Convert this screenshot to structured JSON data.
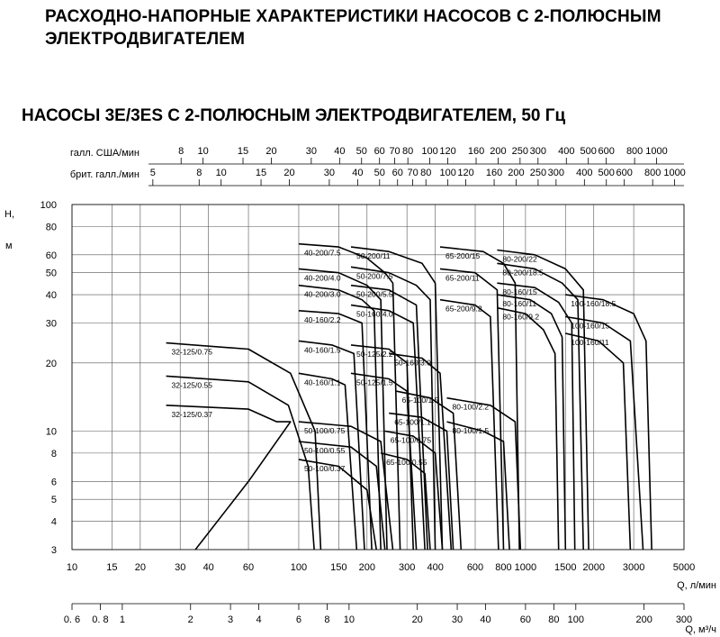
{
  "page": {
    "title": "РАСХОДНО-НАПОРНЫЕ ХАРАКТЕРИСТИКИ НАСОСОВ С 2-ПОЛЮСНЫМ ЭЛЕКТРОДВИГАТЕЛЕМ",
    "subtitle": "НАСОСЫ 3E/3ES С 2-ПОЛЮСНЫМ ЭЛЕКТРОДВИГАТЕЛЕМ, 50 Гц"
  },
  "chart_data": {
    "type": "line",
    "x_scale": "log",
    "y_scale": "log",
    "grid": true,
    "ylabel": "H,\nм",
    "xlabel": "Q, л/мин",
    "xlim": [
      10,
      5000
    ],
    "ylim": [
      3,
      100
    ],
    "x_ticks": [
      10,
      15,
      20,
      30,
      40,
      60,
      100,
      150,
      200,
      300,
      400,
      600,
      800,
      1000,
      1500,
      2000,
      3000,
      5000
    ],
    "y_ticks": [
      3,
      4,
      5,
      6,
      8,
      10,
      20,
      30,
      40,
      50,
      60,
      80,
      100
    ],
    "top_axes": [
      {
        "label": "галл. США/мин",
        "ticks": [
          8,
          10,
          15,
          20,
          30,
          40,
          50,
          60,
          70,
          80,
          100,
          120,
          160,
          200,
          250,
          300,
          400,
          500,
          600,
          800,
          1000
        ],
        "lpm_per_unit": 3.785
      },
      {
        "label": "брит. галл./мин",
        "ticks": [
          5,
          8,
          10,
          15,
          20,
          30,
          40,
          50,
          60,
          70,
          80,
          100,
          120,
          160,
          200,
          250,
          300,
          400,
          500,
          600,
          800,
          1000
        ],
        "lpm_per_unit": 4.546
      }
    ],
    "bottom_axis": {
      "label": "Q, м³/ч",
      "ticks": [
        0.6,
        0.8,
        1,
        2,
        3,
        4,
        6,
        8,
        10,
        20,
        30,
        40,
        60,
        80,
        100,
        200,
        300
      ],
      "tick_labels": [
        "0. 6",
        "0. 8",
        "1",
        "2",
        "3",
        "4",
        "6",
        "8",
        "10",
        "20",
        "30",
        "40",
        "60",
        "80",
        "100",
        "200",
        "300"
      ],
      "lpm_per_unit": 16.667
    },
    "series": [
      {
        "name": "32-125/0.75",
        "x": [
          26,
          60,
          92,
          118,
          125
        ],
        "y": [
          24.5,
          23,
          18,
          10,
          3
        ]
      },
      {
        "name": "32-125/0.55",
        "x": [
          26,
          60,
          90,
          110,
          117
        ],
        "y": [
          17.5,
          16.5,
          13,
          7,
          3
        ]
      },
      {
        "name": "32-125/0.37",
        "x": [
          26,
          60,
          80,
          92,
          60,
          35
        ],
        "y": [
          13,
          12.5,
          11,
          11,
          6,
          3
        ]
      },
      {
        "name": "40-200/7.5",
        "x": [
          100,
          150,
          200,
          240,
          260,
          280
        ],
        "y": [
          67,
          65,
          58,
          50,
          45,
          3
        ]
      },
      {
        "name": "40-200/4.0",
        "x": [
          100,
          150,
          200,
          230,
          245
        ],
        "y": [
          52,
          50,
          44,
          38,
          3
        ]
      },
      {
        "name": "40-200/3.0",
        "x": [
          100,
          150,
          190,
          215,
          230
        ],
        "y": [
          44,
          42,
          38,
          34,
          3
        ]
      },
      {
        "name": "40-160/2.2",
        "x": [
          100,
          150,
          190,
          210
        ],
        "y": [
          34,
          33,
          30,
          3
        ]
      },
      {
        "name": "40-160/1.5",
        "x": [
          100,
          140,
          175,
          195
        ],
        "y": [
          25,
          24,
          22,
          3
        ]
      },
      {
        "name": "40-160/1.1",
        "x": [
          100,
          140,
          160,
          180
        ],
        "y": [
          18,
          17,
          16,
          3
        ]
      },
      {
        "name": "50-100/0.75",
        "x": [
          100,
          170,
          230,
          260
        ],
        "y": [
          11,
          10.5,
          9,
          3
        ]
      },
      {
        "name": "50-100/0.55",
        "x": [
          100,
          170,
          220,
          240
        ],
        "y": [
          9,
          8.5,
          7,
          3
        ]
      },
      {
        "name": "50-100/0.37",
        "x": [
          100,
          150,
          200,
          220
        ],
        "y": [
          7.5,
          7,
          5.5,
          3
        ]
      },
      {
        "name": "50-200/11",
        "x": [
          170,
          250,
          350,
          400,
          430
        ],
        "y": [
          65,
          62,
          55,
          45,
          3
        ]
      },
      {
        "name": "50-200/7.5",
        "x": [
          170,
          250,
          330,
          380,
          400
        ],
        "y": [
          53,
          50,
          44,
          38,
          3
        ]
      },
      {
        "name": "50-200/5.5",
        "x": [
          170,
          250,
          330,
          370
        ],
        "y": [
          44,
          42,
          36,
          3
        ]
      },
      {
        "name": "50-160/4.0",
        "x": [
          170,
          250,
          320,
          360
        ],
        "y": [
          36,
          34,
          30,
          3
        ]
      },
      {
        "name": "50-125/2.2",
        "x": [
          170,
          250,
          300,
          320
        ],
        "y": [
          24,
          23,
          20,
          3
        ]
      },
      {
        "name": "50-125/1.5",
        "x": [
          170,
          250,
          300,
          330
        ],
        "y": [
          18,
          17,
          15,
          3
        ]
      },
      {
        "name": "50-160/3.0",
        "x": [
          250,
          350,
          420,
          470
        ],
        "y": [
          22,
          21,
          18,
          3
        ]
      },
      {
        "name": "65-100/1.5",
        "x": [
          270,
          380,
          480,
          520
        ],
        "y": [
          15,
          14,
          12,
          3
        ]
      },
      {
        "name": "65-100/1.1",
        "x": [
          250,
          350,
          450,
          480
        ],
        "y": [
          12,
          11.5,
          10,
          3
        ]
      },
      {
        "name": "65-100/0.75",
        "x": [
          240,
          320,
          400,
          430
        ],
        "y": [
          10,
          9.5,
          8,
          3
        ]
      },
      {
        "name": "65-100/0.55",
        "x": [
          230,
          300,
          360,
          380
        ],
        "y": [
          8,
          7.5,
          6.5,
          3
        ]
      },
      {
        "name": "65-200/15",
        "x": [
          420,
          650,
          800,
          900,
          940
        ],
        "y": [
          65,
          62,
          55,
          45,
          3
        ]
      },
      {
        "name": "65-200/11",
        "x": [
          420,
          600,
          750,
          800
        ],
        "y": [
          52,
          50,
          42,
          3
        ]
      },
      {
        "name": "65-200/9.2",
        "x": [
          420,
          600,
          700,
          760
        ],
        "y": [
          38,
          36,
          32,
          3
        ]
      },
      {
        "name": "80-100/2.2",
        "x": [
          450,
          700,
          900,
          950
        ],
        "y": [
          14,
          13,
          11,
          3
        ]
      },
      {
        "name": "80-100/1.5",
        "x": [
          450,
          650,
          800,
          850
        ],
        "y": [
          11,
          10,
          9,
          3
        ]
      },
      {
        "name": "80-200/22",
        "x": [
          750,
          1100,
          1500,
          1800,
          1900
        ],
        "y": [
          63,
          60,
          52,
          42,
          3
        ]
      },
      {
        "name": "80-200/18.5",
        "x": [
          750,
          1100,
          1450,
          1700,
          1800
        ],
        "y": [
          55,
          52,
          45,
          38,
          3
        ]
      },
      {
        "name": "80-160/15",
        "x": [
          750,
          1100,
          1400,
          1600,
          1650
        ],
        "y": [
          45,
          43,
          37,
          30,
          3
        ]
      },
      {
        "name": "80-160/11",
        "x": [
          750,
          1050,
          1300,
          1450,
          1500
        ],
        "y": [
          40,
          38,
          33,
          26,
          3
        ]
      },
      {
        "name": "80-160/9.2",
        "x": [
          750,
          1000,
          1200,
          1350,
          1400
        ],
        "y": [
          35,
          33,
          28,
          22,
          3
        ]
      },
      {
        "name": "100-160/18.5",
        "x": [
          1500,
          2200,
          3000,
          3400,
          3600
        ],
        "y": [
          40,
          38,
          33,
          25,
          3
        ]
      },
      {
        "name": "100-160/15",
        "x": [
          1500,
          2200,
          2900,
          3300
        ],
        "y": [
          32,
          30,
          25,
          3
        ]
      },
      {
        "name": "100-160/11",
        "x": [
          1500,
          2100,
          2700,
          2900
        ],
        "y": [
          27,
          25,
          20,
          3
        ]
      }
    ]
  }
}
